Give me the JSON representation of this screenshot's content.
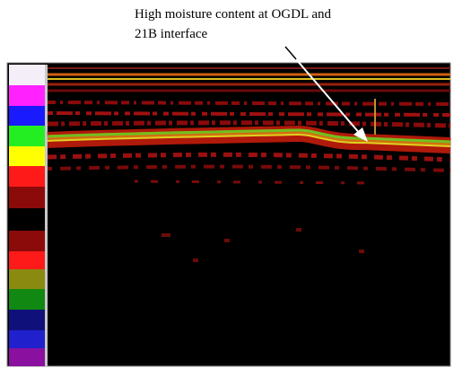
{
  "annotation": {
    "lines": [
      "High moisture content at OGDL and",
      "21B interface"
    ]
  }
}
